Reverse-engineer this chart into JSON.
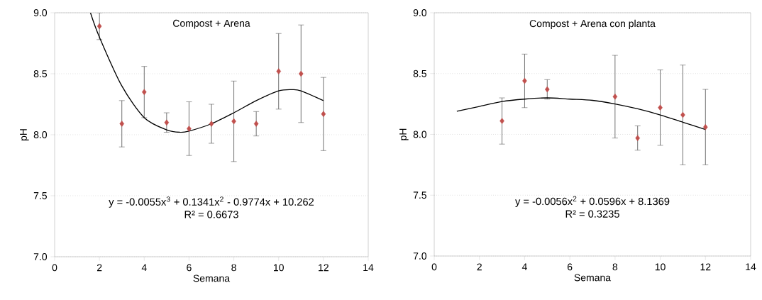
{
  "chart_data": [
    {
      "type": "scatter",
      "title": "Compost + Arena",
      "xlabel": "Semana",
      "ylabel": "pH",
      "xlim": [
        0,
        14
      ],
      "xticks": [
        0,
        2,
        4,
        6,
        8,
        10,
        12,
        14
      ],
      "ylim": [
        7,
        9
      ],
      "yticks": [
        {
          "value": 7,
          "label": "7.0"
        },
        {
          "value": 7.5,
          "label": "7.5"
        },
        {
          "value": 8,
          "label": "8.0"
        },
        {
          "value": 8.5,
          "label": "8.5"
        },
        {
          "value": 9,
          "label": "9.0"
        }
      ],
      "grid": "y",
      "series": [
        {
          "marker": "diamond",
          "color": "#c0504d",
          "x": [
            2,
            3,
            4,
            5,
            6,
            7,
            8,
            9,
            10,
            11,
            12
          ],
          "values": [
            8.89,
            8.09,
            8.35,
            8.1,
            8.05,
            8.09,
            8.11,
            8.09,
            8.52,
            8.5,
            8.17
          ],
          "errors": [
            0.11,
            0.19,
            0.21,
            0.08,
            0.22,
            0.16,
            0.33,
            0.1,
            0.31,
            0.4,
            0.3
          ]
        },
        {
          "type": "line",
          "marker": "none",
          "color": "#000000",
          "x": [
            1.6,
            2,
            3,
            4,
            5,
            5.6,
            6,
            7,
            8,
            9,
            10,
            10.6,
            11,
            12
          ],
          "values": [
            9.0,
            8.8,
            8.4,
            8.14,
            8.04,
            8.02,
            8.03,
            8.09,
            8.18,
            8.28,
            8.36,
            8.37,
            8.36,
            8.28
          ]
        }
      ],
      "annotations": [
        "y = -0.0055x$^{3}$ + 0.1341x$^{2}$ - 0.9774x + 10.262",
        "R² = 0.6673"
      ]
    },
    {
      "type": "scatter",
      "title": "Compost + Arena con planta",
      "xlabel": "Semana",
      "ylabel": "pH",
      "xlim": [
        0,
        14
      ],
      "xticks": [
        0,
        2,
        4,
        6,
        8,
        10,
        12,
        14
      ],
      "ylim": [
        7,
        9
      ],
      "yticks": [
        {
          "value": 7,
          "label": "7.0"
        },
        {
          "value": 7.5,
          "label": "7.5"
        },
        {
          "value": 8,
          "label": "8.0"
        },
        {
          "value": 8.5,
          "label": "8.5"
        },
        {
          "value": 9,
          "label": "9.0"
        }
      ],
      "grid": "y",
      "series": [
        {
          "marker": "diamond",
          "color": "#c0504d",
          "x": [
            3,
            4,
            5,
            8,
            9,
            10,
            11,
            12
          ],
          "values": [
            8.11,
            8.44,
            8.37,
            8.31,
            7.97,
            8.22,
            8.16,
            8.06
          ],
          "errors": [
            0.19,
            0.22,
            0.08,
            0.34,
            0.1,
            0.31,
            0.41,
            0.31
          ]
        },
        {
          "type": "line",
          "marker": "none",
          "color": "#000000",
          "x": [
            1,
            2,
            3,
            4,
            5,
            6,
            7,
            8,
            9,
            10,
            11,
            12
          ],
          "values": [
            8.19,
            8.23,
            8.27,
            8.29,
            8.3,
            8.29,
            8.28,
            8.25,
            8.21,
            8.16,
            8.1,
            8.04
          ]
        }
      ],
      "annotations": [
        "y = -0.0056x$^{2}$ + 0.0596x + 8.1369",
        "R² = 0.3235"
      ]
    }
  ]
}
